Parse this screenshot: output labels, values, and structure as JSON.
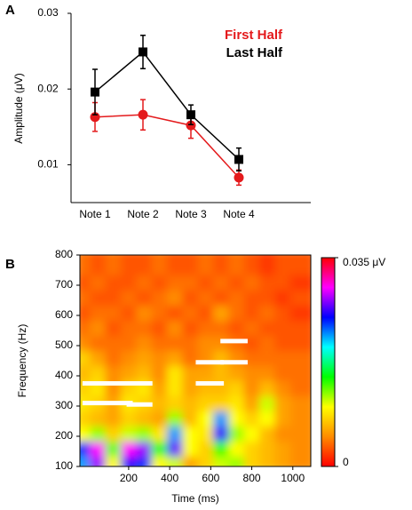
{
  "chart_data": [
    {
      "type": "line",
      "panel": "A",
      "ylabel": "Amplitude (μV)",
      "categories": [
        "Note 1",
        "Note 2",
        "Note 3",
        "Note 4"
      ],
      "series": [
        {
          "name": "First Half",
          "color": "#e41a1c",
          "marker": "circle",
          "values": [
            0.0163,
            0.0166,
            0.0152,
            0.0083
          ],
          "errors": [
            0.0019,
            0.002,
            0.0017,
            0.001
          ]
        },
        {
          "name": "Last Half",
          "color": "#000000",
          "marker": "square",
          "values": [
            0.0196,
            0.0249,
            0.0166,
            0.0107
          ],
          "errors": [
            0.003,
            0.0022,
            0.0013,
            0.0015
          ]
        }
      ],
      "ylim": [
        0.005,
        0.03
      ],
      "yticks": [
        0.01,
        0.02,
        0.03
      ],
      "legend": "upper right"
    },
    {
      "type": "heatmap",
      "panel": "B",
      "xlabel": "Time (ms)",
      "ylabel": "Frequency (Hz)",
      "x": [
        0,
        75,
        150,
        225,
        300,
        375,
        450,
        525,
        600,
        675,
        750,
        825,
        900,
        975,
        1050
      ],
      "y": [
        125,
        175,
        225,
        275,
        325,
        375,
        425,
        475,
        525,
        575,
        625,
        675,
        725,
        775
      ],
      "z": [
        [
          0.022,
          0.028,
          0.01,
          0.026,
          0.024,
          0.01,
          0.011,
          0.006,
          0.008,
          0.011,
          0.012,
          0.008,
          0.007,
          0.006,
          0.005
        ],
        [
          0.024,
          0.03,
          0.013,
          0.03,
          0.028,
          0.014,
          0.027,
          0.01,
          0.008,
          0.014,
          0.01,
          0.008,
          0.007,
          0.006,
          0.005
        ],
        [
          0.01,
          0.012,
          0.008,
          0.011,
          0.012,
          0.009,
          0.022,
          0.01,
          0.009,
          0.026,
          0.012,
          0.01,
          0.007,
          0.005,
          0.005
        ],
        [
          0.008,
          0.007,
          0.006,
          0.008,
          0.007,
          0.006,
          0.012,
          0.007,
          0.01,
          0.022,
          0.01,
          0.008,
          0.01,
          0.006,
          0.005
        ],
        [
          0.009,
          0.008,
          0.006,
          0.009,
          0.008,
          0.007,
          0.008,
          0.007,
          0.008,
          0.008,
          0.009,
          0.006,
          0.011,
          0.006,
          0.005
        ],
        [
          0.008,
          0.009,
          0.005,
          0.008,
          0.009,
          0.006,
          0.009,
          0.006,
          0.007,
          0.007,
          0.008,
          0.005,
          0.007,
          0.005,
          0.004
        ],
        [
          0.007,
          0.008,
          0.005,
          0.006,
          0.007,
          0.005,
          0.009,
          0.006,
          0.006,
          0.007,
          0.006,
          0.005,
          0.005,
          0.004,
          0.004
        ],
        [
          0.008,
          0.006,
          0.004,
          0.005,
          0.006,
          0.005,
          0.006,
          0.004,
          0.005,
          0.007,
          0.005,
          0.004,
          0.004,
          0.004,
          0.004
        ],
        [
          0.005,
          0.004,
          0.004,
          0.004,
          0.005,
          0.004,
          0.004,
          0.004,
          0.005,
          0.005,
          0.004,
          0.003,
          0.004,
          0.003,
          0.003
        ],
        [
          0.004,
          0.005,
          0.003,
          0.004,
          0.004,
          0.003,
          0.005,
          0.003,
          0.004,
          0.004,
          0.003,
          0.004,
          0.003,
          0.003,
          0.003
        ],
        [
          0.003,
          0.004,
          0.004,
          0.003,
          0.005,
          0.004,
          0.003,
          0.004,
          0.003,
          0.006,
          0.004,
          0.003,
          0.004,
          0.003,
          0.002
        ],
        [
          0.004,
          0.003,
          0.003,
          0.004,
          0.003,
          0.004,
          0.005,
          0.003,
          0.004,
          0.003,
          0.004,
          0.003,
          0.003,
          0.002,
          0.003
        ],
        [
          0.003,
          0.004,
          0.003,
          0.003,
          0.004,
          0.003,
          0.004,
          0.004,
          0.003,
          0.004,
          0.003,
          0.004,
          0.003,
          0.003,
          0.002
        ],
        [
          0.004,
          0.003,
          0.004,
          0.003,
          0.003,
          0.004,
          0.003,
          0.003,
          0.004,
          0.003,
          0.004,
          0.003,
          0.002,
          0.003,
          0.003
        ]
      ],
      "colormap": [
        "#ff0000",
        "#ff8c00",
        "#ffff00",
        "#00ff00",
        "#00ffff",
        "#0000ff",
        "#ff00ff",
        "#ff0000"
      ],
      "zlim": [
        0,
        0.035
      ],
      "zticks": [
        0,
        {
          "value": 0.035,
          "label": "0.035  μV"
        }
      ],
      "markers": [
        {
          "x": [
            -25,
            220
          ],
          "y": 375
        },
        {
          "x": [
            -25,
            220
          ],
          "y": 310
        },
        {
          "x": [
            190,
            316
          ],
          "y": 375
        },
        {
          "x": [
            190,
            316
          ],
          "y": 305
        },
        {
          "x": [
            527,
            664
          ],
          "y": 445
        },
        {
          "x": [
            527,
            664
          ],
          "y": 375
        },
        {
          "x": [
            647,
            780
          ],
          "y": 515
        },
        {
          "x": [
            647,
            780
          ],
          "y": 445
        }
      ],
      "xlim": [
        -37.5,
        1087.5
      ],
      "ylim": [
        100,
        800
      ],
      "xticks": [
        200,
        400,
        600,
        800,
        1000
      ],
      "yticks": [
        100,
        200,
        300,
        400,
        500,
        600,
        700,
        800
      ]
    }
  ]
}
